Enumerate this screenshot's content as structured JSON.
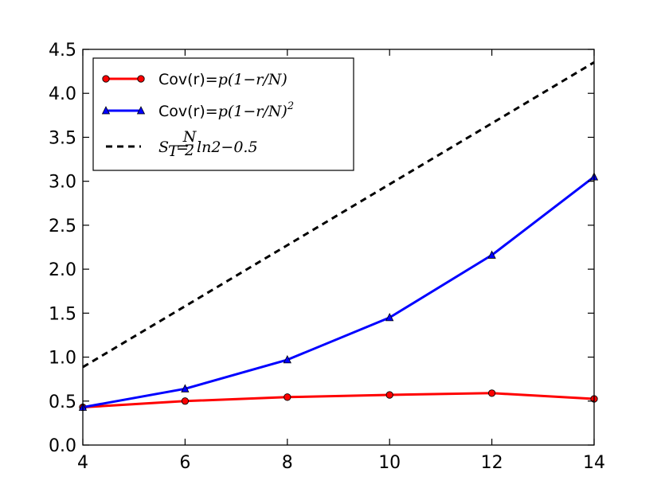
{
  "chart_data": {
    "type": "line",
    "title": "",
    "xlabel": "",
    "ylabel": "",
    "xlim": [
      4,
      14
    ],
    "ylim": [
      0.0,
      4.5
    ],
    "xticks": [
      "4",
      "6",
      "8",
      "10",
      "12",
      "14"
    ],
    "yticks": [
      "0.0",
      "0.5",
      "1.0",
      "1.5",
      "2.0",
      "2.5",
      "3.0",
      "3.5",
      "4.0",
      "4.5"
    ],
    "grid": false,
    "legend_position": "top-left",
    "series": [
      {
        "name": "Cov(r)=p(1−r/N)",
        "label_prefix": "Cov(r)=",
        "label_math": "p(1−r/N)",
        "label_sup": "",
        "color": "#ff0000",
        "marker": "circle",
        "dash": "solid",
        "x": [
          4,
          6,
          8,
          10,
          12,
          14
        ],
        "y": [
          0.43,
          0.5,
          0.545,
          0.57,
          0.59,
          0.525
        ]
      },
      {
        "name": "Cov(r)=p(1−r/N)²",
        "label_prefix": "Cov(r)=",
        "label_math": "p(1−r/N)",
        "label_sup": "2",
        "color": "#0000ff",
        "marker": "triangle",
        "dash": "solid",
        "x": [
          4,
          6,
          8,
          10,
          12,
          14
        ],
        "y": [
          0.43,
          0.64,
          0.97,
          1.45,
          2.16,
          3.05
        ]
      },
      {
        "name": "S_T = (N/2) ln2 − 0.5",
        "label_math_before": "S",
        "label_sub": "T",
        "label_eq": "=",
        "frac_num": "N",
        "frac_den": "2",
        "label_math_after": "ln2−0.5",
        "color": "#000000",
        "marker": "none",
        "dash": "dashed",
        "x": [
          4,
          6,
          8,
          10,
          12,
          14
        ],
        "y": [
          0.886,
          1.579,
          2.273,
          2.966,
          3.659,
          4.352
        ]
      }
    ]
  }
}
